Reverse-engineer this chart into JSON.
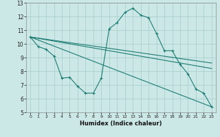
{
  "xlabel": "Humidex (Indice chaleur)",
  "background_color": "#cce8e6",
  "grid_color": "#aacfcc",
  "line_color": "#1a7a72",
  "xlim": [
    -0.5,
    23.5
  ],
  "ylim": [
    5,
    13
  ],
  "yticks": [
    5,
    6,
    7,
    8,
    9,
    10,
    11,
    12,
    13
  ],
  "xticks": [
    0,
    1,
    2,
    3,
    4,
    5,
    6,
    7,
    8,
    9,
    10,
    11,
    12,
    13,
    14,
    15,
    16,
    17,
    18,
    19,
    20,
    21,
    22,
    23
  ],
  "line1_x": [
    0,
    1,
    2,
    3,
    4,
    5,
    6,
    7,
    8,
    9,
    10,
    11,
    12,
    13,
    14,
    15,
    16,
    17,
    18,
    19,
    20,
    21,
    22,
    23
  ],
  "line1_y": [
    10.5,
    9.8,
    9.6,
    9.1,
    7.5,
    7.55,
    6.9,
    6.4,
    6.4,
    7.5,
    11.1,
    11.55,
    12.3,
    12.6,
    12.1,
    11.9,
    10.75,
    9.5,
    9.5,
    8.5,
    7.8,
    6.7,
    6.4,
    5.4
  ],
  "line2_x": [
    0,
    23
  ],
  "line2_y": [
    10.5,
    8.6
  ],
  "line3_x": [
    0,
    23
  ],
  "line3_y": [
    10.5,
    8.2
  ],
  "line4_x": [
    0,
    23
  ],
  "line4_y": [
    10.5,
    5.4
  ]
}
